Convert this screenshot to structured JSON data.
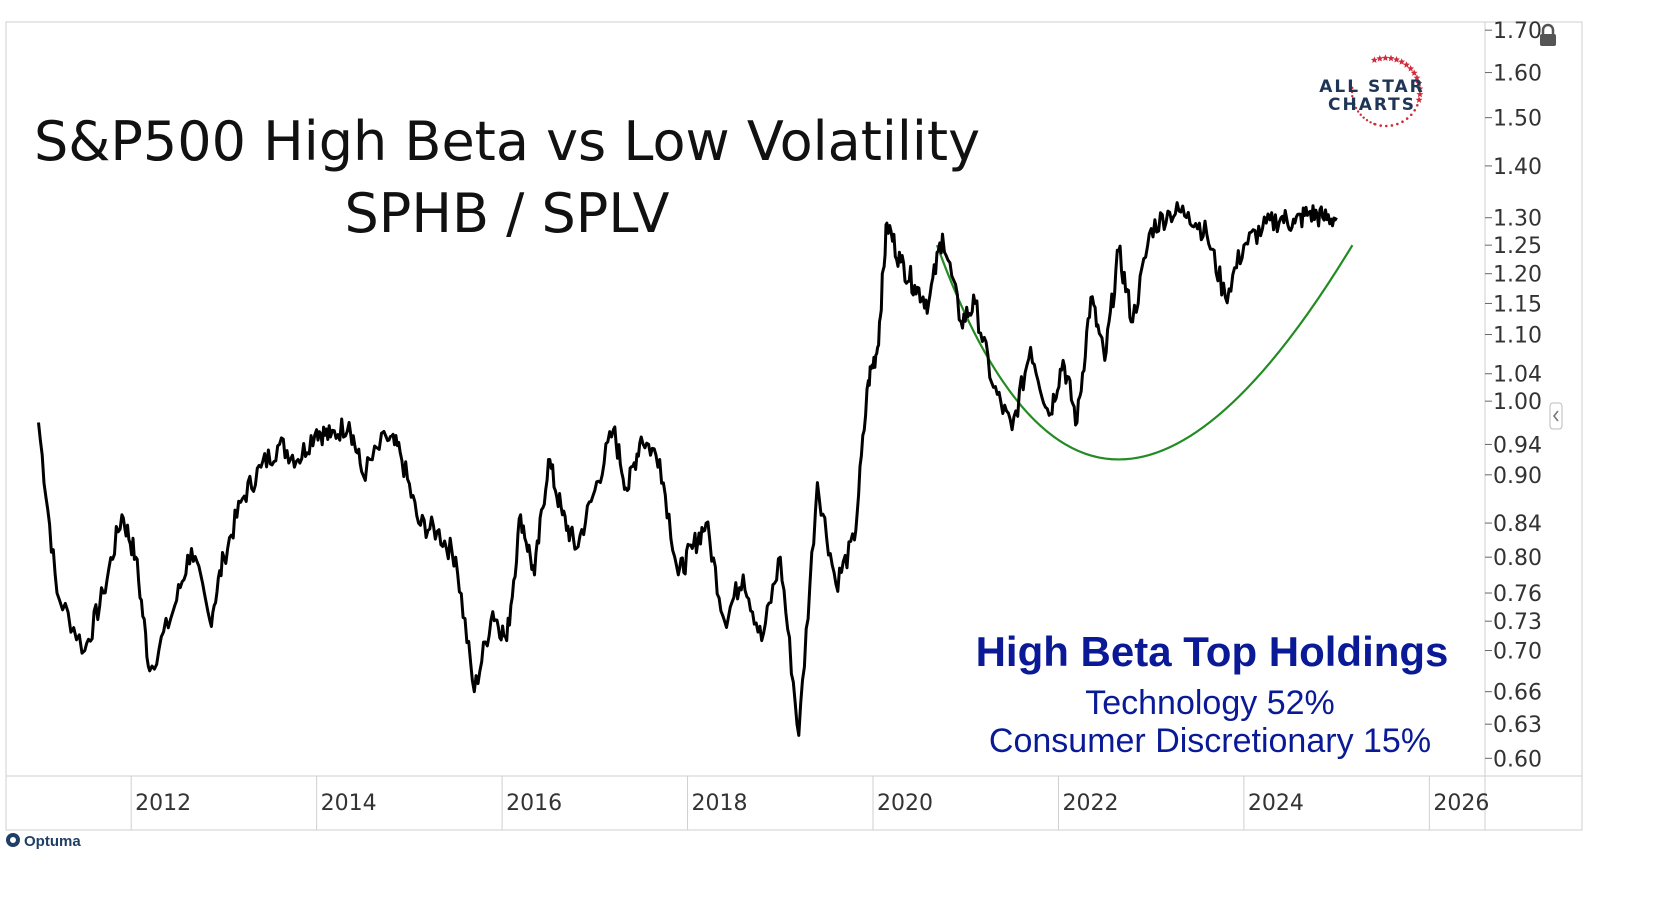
{
  "title": {
    "line1": "S&P500 High Beta vs Low Volatility",
    "line2": "SPHB / SPLV"
  },
  "annotation": {
    "heading": "High Beta Top Holdings",
    "lines": [
      "Technology 52%",
      "Consumer Discretionary 15%"
    ],
    "color": "#0a1a96"
  },
  "logo": {
    "line1": "ALL STAR",
    "line2": "CHARTS"
  },
  "footer": {
    "brand": "Optuma"
  },
  "colors": {
    "line": "#000000",
    "arc": "#228b22",
    "star": "#d22a3a",
    "text": "#0a1a96"
  },
  "icons": [
    "lock-icon",
    "collapse-arrow-icon",
    "optuma-logo-icon"
  ],
  "chart_data": {
    "type": "line",
    "series": [
      {
        "x": [
          2011.0,
          2011.2,
          2011.5,
          2011.7,
          2011.9,
          2012.05,
          2012.2,
          2012.45,
          2012.65,
          2012.85,
          2013.0,
          2013.2,
          2013.4,
          2013.6,
          2013.8,
          2014.0,
          2014.15,
          2014.35,
          2014.5,
          2014.75,
          2014.9,
          2015.1,
          2015.3,
          2015.5,
          2015.7,
          2015.9,
          2016.05,
          2016.2,
          2016.35,
          2016.5,
          2016.65,
          2016.8,
          2017.0,
          2017.2,
          2017.35,
          2017.5,
          2017.7,
          2017.9,
          2018.05,
          2018.2,
          2018.4,
          2018.6,
          2018.8,
          2019.0,
          2019.2,
          2019.4,
          2019.6,
          2019.8,
          2019.95,
          2020.05,
          2020.15,
          2020.3,
          2020.45,
          2020.6,
          2020.75,
          2020.95,
          2021.1,
          2021.3,
          2021.5,
          2021.7,
          2021.9,
          2022.05,
          2022.2,
          2022.35,
          2022.5,
          2022.65,
          2022.8,
          2023.0,
          2023.2,
          2023.4,
          2023.6,
          2023.8,
          2024.0,
          2024.2,
          2024.4,
          2024.55,
          2024.7,
          2024.85,
          2025.0
        ],
        "y": [
          0.97,
          0.76,
          0.7,
          0.76,
          0.85,
          0.8,
          0.68,
          0.74,
          0.81,
          0.73,
          0.8,
          0.87,
          0.91,
          0.94,
          0.92,
          0.96,
          0.95,
          0.97,
          0.9,
          0.95,
          0.93,
          0.84,
          0.83,
          0.8,
          0.66,
          0.74,
          0.71,
          0.85,
          0.78,
          0.92,
          0.85,
          0.81,
          0.88,
          0.96,
          0.88,
          0.95,
          0.92,
          0.78,
          0.81,
          0.84,
          0.73,
          0.78,
          0.71,
          0.8,
          0.62,
          0.89,
          0.77,
          0.82,
          1.03,
          1.08,
          1.29,
          1.22,
          1.18,
          1.15,
          1.27,
          1.12,
          1.15,
          1.02,
          0.96,
          1.08,
          0.98,
          1.06,
          0.97,
          1.16,
          1.06,
          1.24,
          1.12,
          1.28,
          1.31,
          1.31,
          1.27,
          1.16,
          1.25,
          1.28,
          1.3,
          1.29,
          1.31,
          1.3,
          1.3
        ]
      }
    ],
    "x_ticks": [
      "2012",
      "2014",
      "2016",
      "2018",
      "2020",
      "2022",
      "2024",
      "2026"
    ],
    "y_ticks": [
      "1.70",
      "1.60",
      "1.50",
      "1.40",
      "1.30",
      "1.25",
      "1.20",
      "1.15",
      "1.10",
      "1.04",
      "1.00",
      "0.94",
      "0.90",
      "0.84",
      "0.80",
      "0.76",
      "0.73",
      "0.70",
      "0.66",
      "0.63",
      "0.60"
    ],
    "xlim": [
      2010.65,
      2026.6
    ],
    "ylim": [
      0.585,
      1.72
    ],
    "y_scale": "log",
    "y_axis_side": "right",
    "grid": false,
    "arc": {
      "start": [
        2020.69,
        1.25
      ],
      "bottom": [
        2022.65,
        0.92
      ],
      "end": [
        2025.17,
        1.25
      ]
    }
  }
}
